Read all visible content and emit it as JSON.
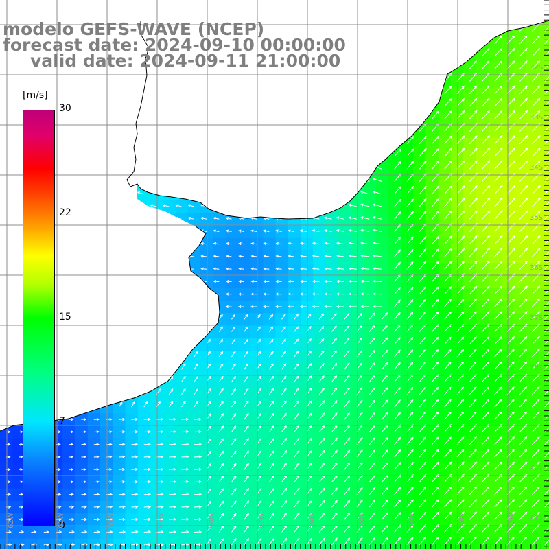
{
  "title": {
    "model": "modelo GEFS-WAVE (NCEP)",
    "forecast": "forecast date: 2024-09-10 00:00:00",
    "valid": "valid date: 2024-09-11 21:00:00"
  },
  "colorbar": {
    "unit": "[m/s]",
    "ticks": [
      "30",
      "22",
      "15",
      "7",
      "0"
    ],
    "tick_values": [
      30,
      22,
      15,
      7,
      0
    ],
    "range": [
      0,
      30
    ]
  },
  "lat_labels": [
    "32S",
    "33S",
    "34S",
    "35S",
    "36S",
    "37S",
    "38S",
    "39S",
    "40S",
    "41S"
  ],
  "lat_values": [
    -32,
    -33,
    -34,
    -35,
    -36,
    -37,
    -38,
    -39,
    -40,
    -41
  ],
  "lon_labels": [
    "62W",
    "61W",
    "60W",
    "59W",
    "58W",
    "57W",
    "56W",
    "55W",
    "54W",
    "53W",
    "52W"
  ],
  "lon_values": [
    -62,
    -61,
    -60,
    -59,
    -58,
    -57,
    -56,
    -55,
    -54,
    -53,
    -52
  ],
  "colors": {
    "land": "#ffffff",
    "grid": "#8c8c8c",
    "coast": "#000000",
    "title": "#7f7f7f",
    "arrow": "#ffffff",
    "lowest_speed": "#0000ff",
    "highest_speed": "#c00078"
  }
}
